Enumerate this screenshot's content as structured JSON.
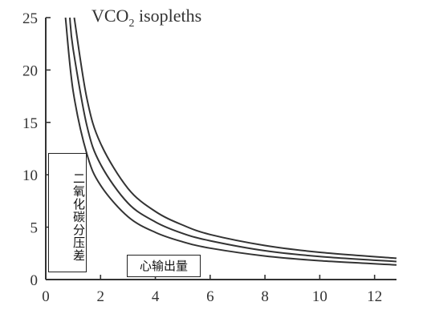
{
  "chart_data": {
    "type": "line",
    "title": {
      "main": "VCO",
      "subscript": "2",
      "suffix": " isopleths"
    },
    "xlabel": "心输出量",
    "ylabel": "二氧化碳分压差",
    "xlim": [
      0,
      12.8
    ],
    "ylim": [
      0,
      25
    ],
    "xticks": [
      0,
      2,
      4,
      6,
      8,
      10,
      12
    ],
    "yticks": [
      0,
      5,
      10,
      15,
      20,
      25
    ],
    "xtick_labels": [
      "0",
      "2",
      "4",
      "6",
      "8",
      "10",
      "12"
    ],
    "ytick_labels": [
      "0",
      "5",
      "10",
      "15",
      "20",
      "25"
    ],
    "grid": false,
    "series": [
      {
        "x": [
          0.72,
          1,
          1.5,
          2,
          3,
          4,
          5,
          6,
          8,
          10,
          12.8
        ],
        "y": [
          25,
          18,
          12,
          9,
          6,
          4.5,
          3.6,
          3,
          2.25,
          1.8,
          1.4
        ]
      },
      {
        "x": [
          0.88,
          1,
          1.5,
          2,
          3,
          4,
          5,
          6,
          8,
          10,
          12.8
        ],
        "y": [
          25,
          22,
          14.7,
          11,
          7.3,
          5.5,
          4.4,
          3.7,
          2.75,
          2.2,
          1.72
        ]
      },
      {
        "x": [
          1.04,
          1.5,
          2,
          3,
          4,
          5,
          6,
          8,
          10,
          12.8
        ],
        "y": [
          25,
          17.3,
          13,
          8.7,
          6.5,
          5.2,
          4.3,
          3.25,
          2.6,
          2.03
        ]
      }
    ]
  }
}
